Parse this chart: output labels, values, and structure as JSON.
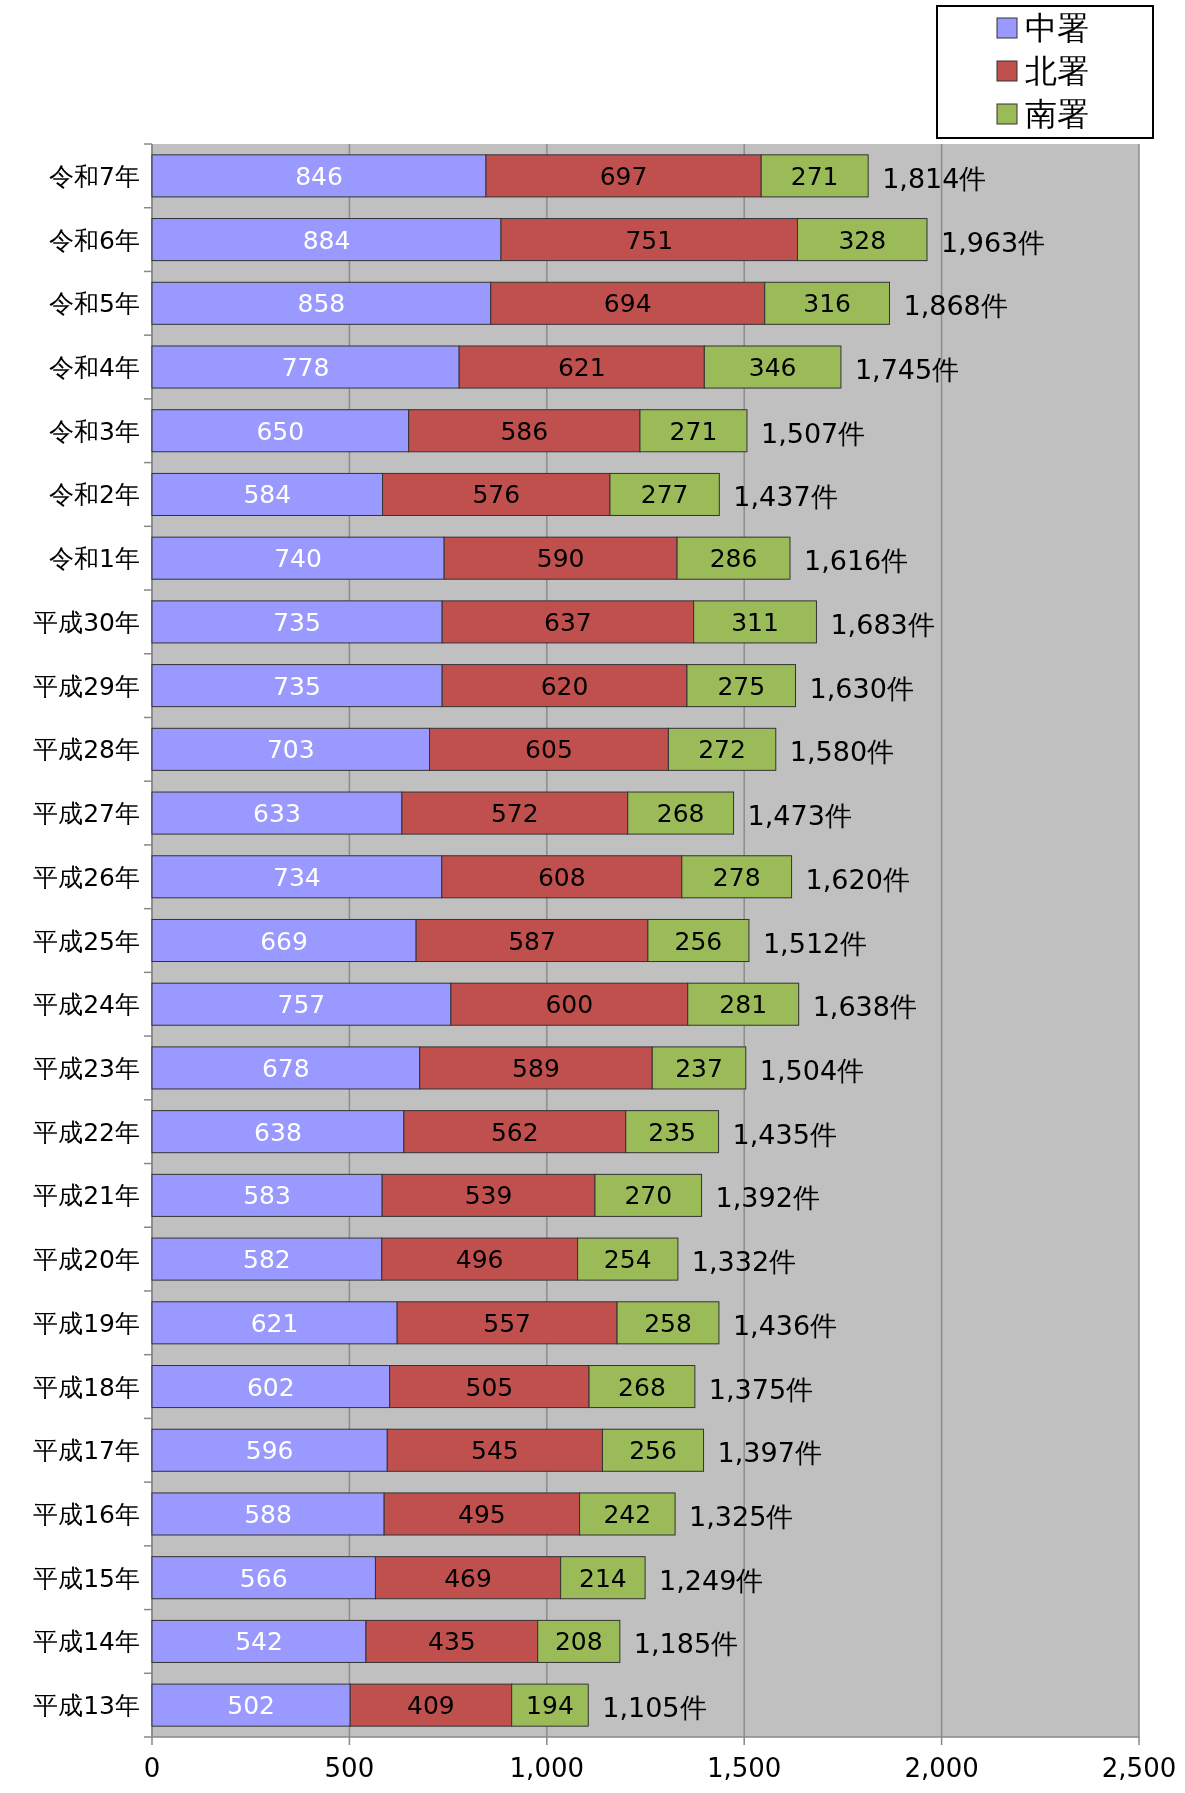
{
  "chart_data": {
    "type": "bar",
    "orientation": "horizontal",
    "stacked": true,
    "categories": [
      "令和7年",
      "令和6年",
      "令和5年",
      "令和4年",
      "令和3年",
      "令和2年",
      "令和1年",
      "平成30年",
      "平成29年",
      "平成28年",
      "平成27年",
      "平成26年",
      "平成25年",
      "平成24年",
      "平成23年",
      "平成22年",
      "平成21年",
      "平成20年",
      "平成19年",
      "平成18年",
      "平成17年",
      "平成16年",
      "平成15年",
      "平成14年",
      "平成13年"
    ],
    "series": [
      {
        "name": "中署",
        "color": "#9999ff",
        "values": [
          846,
          884,
          858,
          778,
          650,
          584,
          740,
          735,
          735,
          703,
          633,
          734,
          669,
          757,
          678,
          638,
          583,
          582,
          621,
          602,
          596,
          588,
          566,
          542,
          502
        ]
      },
      {
        "name": "北署",
        "color": "#c0504d",
        "values": [
          697,
          751,
          694,
          621,
          586,
          576,
          590,
          637,
          620,
          605,
          572,
          608,
          587,
          600,
          589,
          562,
          539,
          496,
          557,
          505,
          545,
          495,
          469,
          435,
          409
        ]
      },
      {
        "name": "南署",
        "color": "#9bbb59",
        "values": [
          271,
          328,
          316,
          346,
          271,
          277,
          286,
          311,
          275,
          272,
          268,
          278,
          256,
          281,
          237,
          235,
          270,
          254,
          258,
          268,
          256,
          242,
          214,
          208,
          194
        ]
      }
    ],
    "totals": [
      "1,814件",
      "1,963件",
      "1,868件",
      "1,745件",
      "1,507件",
      "1,437件",
      "1,616件",
      "1,683件",
      "1,630件",
      "1,580件",
      "1,473件",
      "1,620件",
      "1,512件",
      "1,638件",
      "1,504件",
      "1,435件",
      "1,392件",
      "1,332件",
      "1,436件",
      "1,375件",
      "1,397件",
      "1,325件",
      "1,249件",
      "1,185件",
      "1,105件"
    ],
    "data_labels": true,
    "xlim": [
      0,
      2500
    ],
    "xticks": [
      0,
      500,
      {
        "value": 1000,
        "label": "1,000"
      },
      {
        "value": 1500,
        "label": "1,500"
      },
      {
        "value": 2000,
        "label": "2,000"
      },
      {
        "value": 2500,
        "label": "2,500"
      }
    ],
    "grid": "x",
    "legend": "top right"
  }
}
